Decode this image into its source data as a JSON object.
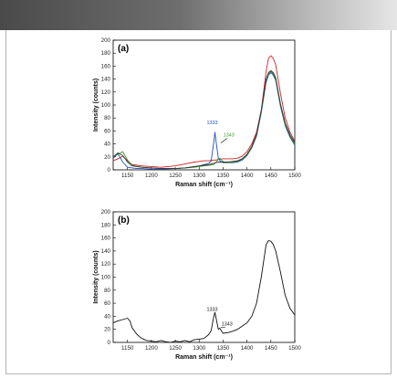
{
  "header": {
    "colors": [
      "#4a4a4a",
      "#e6e6e6"
    ]
  },
  "chart_data": [
    {
      "type": "line",
      "panel_label": "(a)",
      "xlabel": "Raman shift (cm⁻¹)",
      "ylabel": "Intensity (counts)",
      "xlim": [
        1120,
        1500
      ],
      "ylim": [
        0,
        200
      ],
      "x_ticks": [
        "1150",
        "1200",
        "1250",
        "1300",
        "1350",
        "1400",
        "1450",
        "1500"
      ],
      "y_ticks": [
        "0",
        "20",
        "40",
        "60",
        "80",
        "100",
        "120",
        "140",
        "160",
        "180",
        "200"
      ],
      "grid": false,
      "annotations": [
        {
          "text": "1333",
          "x": 1333,
          "y": 62,
          "color": "#1f4fbf"
        },
        {
          "text": "1343",
          "x": 1343,
          "y": 40,
          "color": "#3a9a2a"
        }
      ],
      "series": [
        {
          "color": "#d22020",
          "x": [
            1120,
            1130,
            1140,
            1150,
            1160,
            1170,
            1180,
            1200,
            1220,
            1250,
            1270,
            1290,
            1300,
            1310,
            1320,
            1330,
            1335,
            1340,
            1350,
            1360,
            1370,
            1380,
            1390,
            1400,
            1410,
            1420,
            1430,
            1440,
            1445,
            1450,
            1455,
            1460,
            1470,
            1480,
            1490,
            1500
          ],
          "y": [
            14,
            17,
            21,
            14,
            8,
            7,
            6,
            5,
            4,
            6,
            9,
            12,
            13,
            14,
            14,
            15,
            15,
            16,
            17,
            17,
            17,
            18,
            21,
            28,
            40,
            58,
            92,
            152,
            172,
            176,
            172,
            162,
            118,
            80,
            58,
            44
          ]
        },
        {
          "color": "#1f4fbf",
          "x": [
            1120,
            1130,
            1140,
            1150,
            1160,
            1170,
            1180,
            1200,
            1220,
            1250,
            1270,
            1290,
            1300,
            1310,
            1320,
            1325,
            1330,
            1333,
            1336,
            1340,
            1345,
            1350,
            1360,
            1370,
            1380,
            1390,
            1400,
            1410,
            1420,
            1430,
            1440,
            1445,
            1450,
            1455,
            1460,
            1470,
            1480,
            1490,
            1500
          ],
          "y": [
            18,
            25,
            12,
            4,
            3,
            2,
            2,
            1,
            1,
            2,
            3,
            5,
            6,
            8,
            10,
            14,
            40,
            58,
            40,
            18,
            13,
            11,
            11,
            11,
            12,
            15,
            22,
            34,
            52,
            88,
            135,
            146,
            150,
            146,
            138,
            98,
            68,
            50,
            38
          ]
        },
        {
          "color": "#3a9a2a",
          "x": [
            1120,
            1130,
            1140,
            1150,
            1160,
            1170,
            1180,
            1200,
            1220,
            1250,
            1270,
            1290,
            1300,
            1310,
            1320,
            1330,
            1338,
            1343,
            1348,
            1355,
            1360,
            1370,
            1380,
            1390,
            1400,
            1410,
            1420,
            1430,
            1440,
            1445,
            1450,
            1455,
            1460,
            1470,
            1480,
            1490,
            1500
          ],
          "y": [
            20,
            24,
            28,
            15,
            7,
            5,
            4,
            3,
            2,
            2,
            3,
            4,
            5,
            6,
            7,
            8,
            14,
            18,
            14,
            11,
            11,
            12,
            13,
            16,
            23,
            35,
            54,
            90,
            138,
            148,
            152,
            148,
            140,
            100,
            70,
            52,
            40
          ]
        },
        {
          "color": "#333333",
          "x": [
            1120,
            1130,
            1140,
            1150,
            1160,
            1170,
            1180,
            1200,
            1220,
            1250,
            1270,
            1290,
            1300,
            1310,
            1320,
            1330,
            1340,
            1350,
            1360,
            1370,
            1380,
            1390,
            1400,
            1410,
            1420,
            1430,
            1440,
            1445,
            1450,
            1455,
            1460,
            1470,
            1480,
            1490,
            1500
          ],
          "y": [
            20,
            26,
            22,
            12,
            6,
            5,
            4,
            3,
            2,
            2,
            3,
            5,
            6,
            7,
            8,
            10,
            12,
            12,
            12,
            13,
            14,
            17,
            24,
            36,
            55,
            92,
            140,
            150,
            153,
            150,
            142,
            102,
            72,
            54,
            42
          ]
        }
      ]
    },
    {
      "type": "line",
      "panel_label": "(b)",
      "xlabel": "Raman shift (cm⁻¹)",
      "ylabel": "Intensity (counts)",
      "xlim": [
        1120,
        1500
      ],
      "ylim": [
        0,
        200
      ],
      "x_ticks": [
        "1150",
        "1200",
        "1250",
        "1300",
        "1350",
        "1400",
        "1450",
        "1500"
      ],
      "y_ticks": [
        "0",
        "20",
        "40",
        "60",
        "80",
        "100",
        "120",
        "140",
        "160",
        "180",
        "200"
      ],
      "grid": false,
      "annotations": [
        {
          "text": "1333",
          "x": 1333,
          "y": 40,
          "color": "#111111"
        },
        {
          "text": "1343",
          "x": 1343,
          "y": 22,
          "color": "#111111"
        }
      ],
      "series": [
        {
          "color": "#111111",
          "x": [
            1120,
            1130,
            1140,
            1150,
            1155,
            1160,
            1170,
            1180,
            1190,
            1200,
            1210,
            1220,
            1230,
            1240,
            1250,
            1260,
            1270,
            1280,
            1290,
            1300,
            1310,
            1320,
            1325,
            1330,
            1333,
            1336,
            1340,
            1343,
            1346,
            1350,
            1360,
            1370,
            1380,
            1390,
            1400,
            1410,
            1420,
            1430,
            1440,
            1445,
            1450,
            1455,
            1460,
            1470,
            1480,
            1490,
            1500
          ],
          "y": [
            30,
            33,
            35,
            37,
            33,
            22,
            12,
            6,
            3,
            2,
            1,
            3,
            1,
            0,
            2,
            1,
            3,
            1,
            4,
            5,
            6,
            12,
            18,
            38,
            46,
            35,
            20,
            22,
            18,
            14,
            15,
            17,
            20,
            25,
            30,
            40,
            60,
            100,
            150,
            156,
            155,
            150,
            140,
            108,
            72,
            52,
            42
          ]
        }
      ]
    }
  ]
}
